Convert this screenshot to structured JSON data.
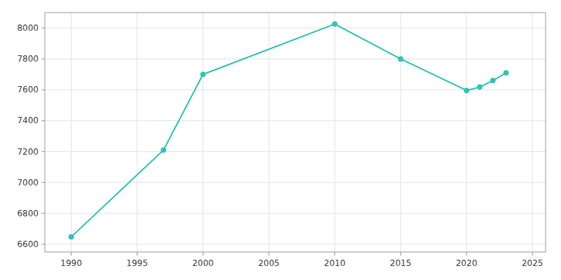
{
  "chart_data": {
    "type": "line",
    "x": [
      1990,
      1997,
      2000,
      2010,
      2015,
      2020,
      2021,
      2022,
      2023
    ],
    "values": [
      6648,
      7210,
      7700,
      8026,
      7800,
      7596,
      7618,
      7660,
      7710
    ],
    "color": "#2EC4B6",
    "marker": "circle",
    "xlim": [
      1988,
      2026
    ],
    "ylim": [
      6550,
      8100
    ],
    "xticks": [
      1990,
      1995,
      2000,
      2005,
      2010,
      2015,
      2020,
      2025
    ],
    "yticks": [
      6600,
      6800,
      7000,
      7200,
      7400,
      7600,
      7800,
      8000
    ],
    "grid": true
  }
}
